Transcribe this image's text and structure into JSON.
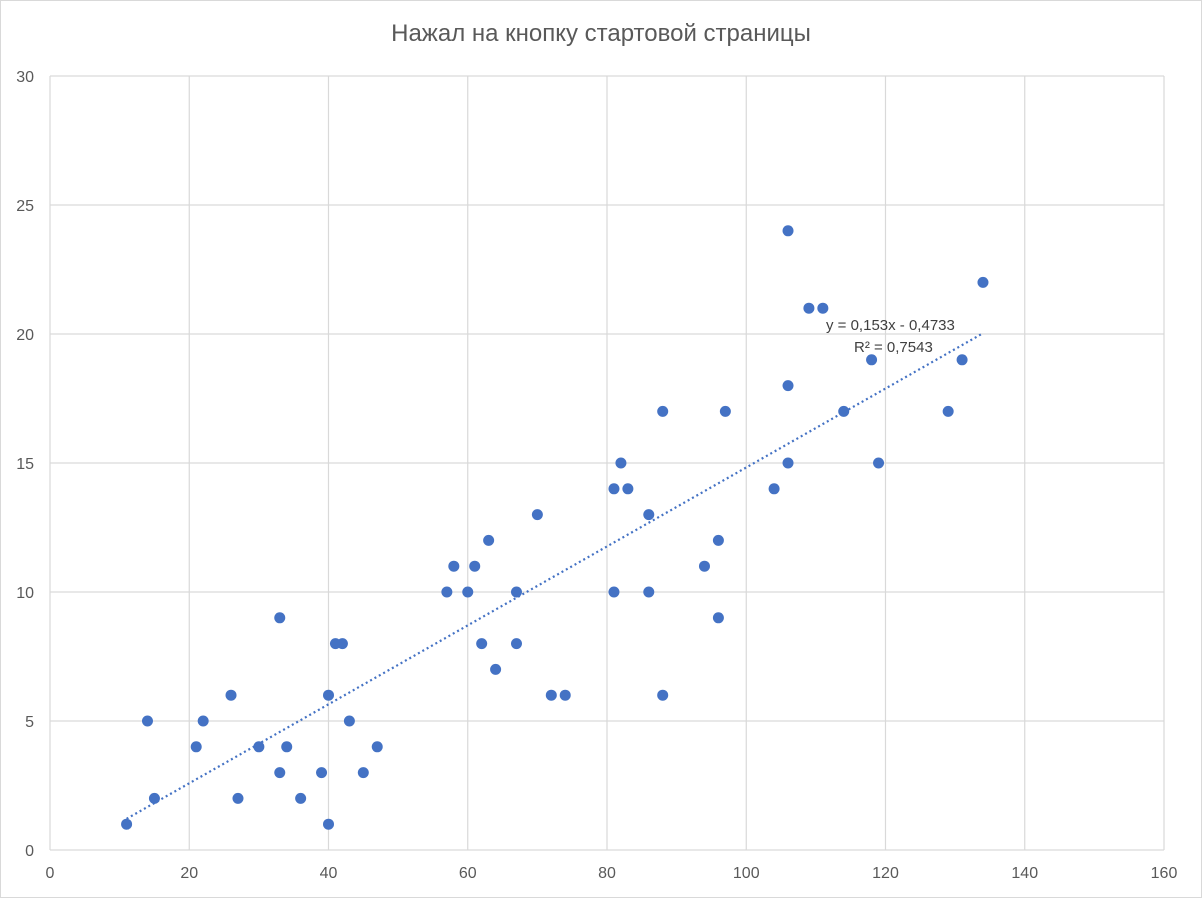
{
  "chart_data": {
    "type": "scatter",
    "title": "Нажал на кнопку стартовой страницы",
    "xlabel": "",
    "ylabel": "",
    "xlim": [
      0,
      160
    ],
    "ylim": [
      0,
      30
    ],
    "x_ticks": [
      0,
      20,
      40,
      60,
      80,
      100,
      120,
      140,
      160
    ],
    "y_ticks": [
      0,
      5,
      10,
      15,
      20,
      25,
      30
    ],
    "grid": true,
    "marker_color": "#4472C4",
    "series": [
      {
        "points": [
          [
            11,
            1
          ],
          [
            14,
            5
          ],
          [
            15,
            2
          ],
          [
            21,
            4
          ],
          [
            22,
            5
          ],
          [
            26,
            6
          ],
          [
            27,
            2
          ],
          [
            30,
            4
          ],
          [
            33,
            3
          ],
          [
            33,
            9
          ],
          [
            34,
            4
          ],
          [
            36,
            2
          ],
          [
            39,
            3
          ],
          [
            40,
            1
          ],
          [
            40,
            6
          ],
          [
            41,
            8
          ],
          [
            42,
            8
          ],
          [
            43,
            5
          ],
          [
            45,
            3
          ],
          [
            47,
            4
          ],
          [
            57,
            10
          ],
          [
            58,
            11
          ],
          [
            60,
            10
          ],
          [
            61,
            11
          ],
          [
            62,
            8
          ],
          [
            63,
            12
          ],
          [
            64,
            7
          ],
          [
            67,
            10
          ],
          [
            67,
            8
          ],
          [
            70,
            13
          ],
          [
            72,
            6
          ],
          [
            74,
            6
          ],
          [
            81,
            14
          ],
          [
            81,
            10
          ],
          [
            82,
            15
          ],
          [
            83,
            14
          ],
          [
            86,
            13
          ],
          [
            86,
            10
          ],
          [
            88,
            17
          ],
          [
            88,
            6
          ],
          [
            94,
            11
          ],
          [
            96,
            12
          ],
          [
            96,
            9
          ],
          [
            97,
            17
          ],
          [
            104,
            14
          ],
          [
            106,
            24
          ],
          [
            106,
            18
          ],
          [
            106,
            15
          ],
          [
            109,
            21
          ],
          [
            111,
            21
          ],
          [
            114,
            17
          ],
          [
            118,
            19
          ],
          [
            119,
            15
          ],
          [
            129,
            17
          ],
          [
            131,
            19
          ],
          [
            134,
            22
          ]
        ]
      }
    ],
    "trendline": {
      "type": "linear",
      "slope": 0.153,
      "intercept": -0.4733,
      "x_range": [
        11,
        134
      ],
      "equation_label": "y = 0,153x - 0,4733",
      "r2_label": "R² = 0,7543",
      "color": "#4472C4",
      "style": "dotted"
    }
  }
}
